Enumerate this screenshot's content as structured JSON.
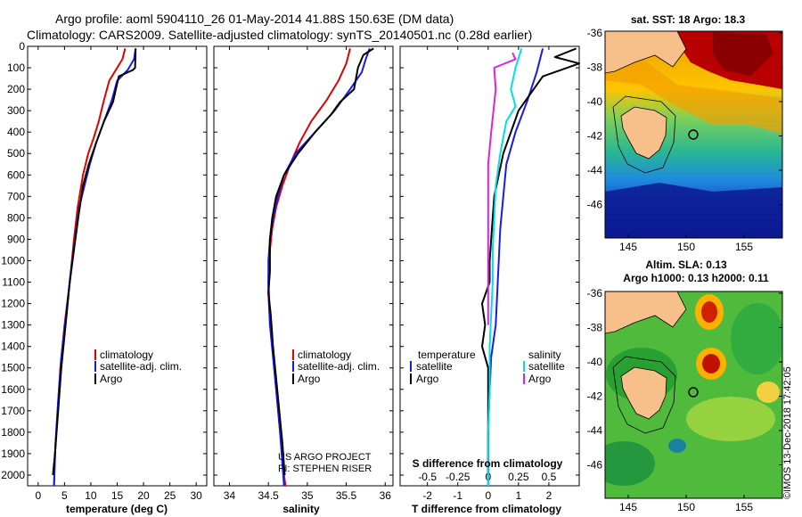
{
  "header": {
    "line1": "Argo profile: aoml 5904110_26 01-May-2014 41.88S 150.63E (DM data)",
    "line2": "Climatology: CARS2009. Satellite-adjusted climatology: synTS_20140501.nc (0.28d earlier)"
  },
  "credit": "©IMOS 13-Dec-2018 17:42:05",
  "colors": {
    "climatology": "#e00000",
    "satellite": "#1a1ae6",
    "argo": "#000000",
    "s_satellite": "#00e0e0",
    "s_argo": "#e020e0"
  },
  "chart_data": [
    {
      "id": "temperature",
      "type": "line",
      "xlabel": "temperature (deg C)",
      "ylabel": "",
      "xlim": [
        -2,
        32
      ],
      "ylim": [
        2050,
        0
      ],
      "xticks": [
        0,
        5,
        10,
        15,
        20,
        25,
        30
      ],
      "yticks": [
        0,
        100,
        200,
        300,
        400,
        500,
        600,
        700,
        800,
        900,
        1000,
        1100,
        1200,
        1300,
        1400,
        1500,
        1600,
        1700,
        1800,
        1900,
        2000
      ],
      "legend": [
        "climatology",
        "satellite-adj. clim.",
        "Argo"
      ],
      "series": [
        {
          "name": "climatology",
          "color": "#e00000",
          "points": [
            [
              16.5,
              10
            ],
            [
              16,
              60
            ],
            [
              15,
              100
            ],
            [
              13.5,
              160
            ],
            [
              12.5,
              250
            ],
            [
              11.5,
              350
            ],
            [
              10.5,
              430
            ],
            [
              9.5,
              500
            ],
            [
              8.5,
              600
            ],
            [
              7.5,
              750
            ],
            [
              6.8,
              900
            ],
            [
              6,
              1100
            ],
            [
              5,
              1300
            ],
            [
              4.2,
              1500
            ],
            [
              3.7,
              1700
            ],
            [
              3.2,
              1900
            ],
            [
              3,
              2050
            ]
          ]
        },
        {
          "name": "satellite-adj. clim.",
          "color": "#1a1ae6",
          "points": [
            [
              18.5,
              10
            ],
            [
              18.2,
              60
            ],
            [
              17,
              110
            ],
            [
              15,
              160
            ],
            [
              14,
              250
            ],
            [
              12.5,
              350
            ],
            [
              11,
              450
            ],
            [
              9.8,
              550
            ],
            [
              8.8,
              650
            ],
            [
              7.8,
              750
            ],
            [
              7,
              900
            ],
            [
              6.2,
              1050
            ],
            [
              5.3,
              1250
            ],
            [
              4.4,
              1450
            ],
            [
              3.8,
              1650
            ],
            [
              3.3,
              1850
            ],
            [
              3,
              2050
            ]
          ]
        },
        {
          "name": "Argo",
          "color": "#000000",
          "points": [
            [
              18.5,
              10
            ],
            [
              18.4,
              100
            ],
            [
              18,
              110
            ],
            [
              15.3,
              140
            ],
            [
              14.2,
              260
            ],
            [
              12.5,
              350
            ],
            [
              11,
              450
            ],
            [
              9.6,
              550
            ],
            [
              8.5,
              650
            ],
            [
              7.6,
              800
            ],
            [
              6.8,
              950
            ],
            [
              6,
              1100
            ],
            [
              5.2,
              1300
            ],
            [
              4.4,
              1500
            ],
            [
              3.8,
              1700
            ],
            [
              3.2,
              1900
            ],
            [
              2.8,
              2000
            ]
          ]
        }
      ]
    },
    {
      "id": "salinity",
      "type": "line",
      "xlabel": "salinity",
      "ylabel": "",
      "xlim": [
        33.8,
        36.1
      ],
      "ylim": [
        2050,
        0
      ],
      "xticks": [
        34,
        34.5,
        35,
        35.5,
        36
      ],
      "legend": [
        "climatology",
        "satellite-adj. clim.",
        "Argo"
      ],
      "annotation": [
        "US ARGO PROJECT",
        "PI: STEPHEN RISER"
      ],
      "series": [
        {
          "name": "climatology",
          "color": "#e00000",
          "points": [
            [
              35.55,
              10
            ],
            [
              35.5,
              80
            ],
            [
              35.4,
              160
            ],
            [
              35.25,
              250
            ],
            [
              35.05,
              350
            ],
            [
              34.9,
              450
            ],
            [
              34.78,
              550
            ],
            [
              34.68,
              650
            ],
            [
              34.6,
              750
            ],
            [
              34.55,
              850
            ],
            [
              34.52,
              950
            ],
            [
              34.5,
              1100
            ],
            [
              34.52,
              1250
            ],
            [
              34.55,
              1400
            ],
            [
              34.6,
              1600
            ],
            [
              34.65,
              1800
            ],
            [
              34.7,
              2000
            ],
            [
              34.72,
              2050
            ]
          ]
        },
        {
          "name": "satellite-adj. clim.",
          "color": "#1a1ae6",
          "points": [
            [
              35.8,
              10
            ],
            [
              35.75,
              60
            ],
            [
              35.7,
              120
            ],
            [
              35.55,
              200
            ],
            [
              35.35,
              300
            ],
            [
              35.1,
              400
            ],
            [
              34.85,
              500
            ],
            [
              34.7,
              600
            ],
            [
              34.62,
              700
            ],
            [
              34.56,
              800
            ],
            [
              34.52,
              900
            ],
            [
              34.5,
              1000
            ],
            [
              34.5,
              1150
            ],
            [
              34.52,
              1300
            ],
            [
              34.56,
              1450
            ],
            [
              34.6,
              1600
            ],
            [
              34.65,
              1800
            ],
            [
              34.7,
              2050
            ]
          ]
        },
        {
          "name": "Argo",
          "color": "#000000",
          "points": [
            [
              35.85,
              10
            ],
            [
              35.72,
              40
            ],
            [
              35.65,
              100
            ],
            [
              35.6,
              200
            ],
            [
              35.42,
              260
            ],
            [
              35.3,
              320
            ],
            [
              35.1,
              400
            ],
            [
              34.88,
              500
            ],
            [
              34.7,
              600
            ],
            [
              34.6,
              700
            ],
            [
              34.55,
              800
            ],
            [
              34.52,
              900
            ],
            [
              34.52,
              1050
            ],
            [
              34.5,
              1150
            ],
            [
              34.53,
              1250
            ],
            [
              34.56,
              1400
            ],
            [
              34.6,
              1550
            ],
            [
              34.64,
              1700
            ],
            [
              34.68,
              1850
            ],
            [
              34.71,
              2000
            ]
          ]
        }
      ]
    },
    {
      "id": "difference",
      "type": "line",
      "xlabel": "T difference from climatology",
      "xlabel_top": "S difference from climatology",
      "ylabel": "",
      "xlim": [
        -2.9,
        3.0
      ],
      "ylim": [
        2050,
        0
      ],
      "xticks": [
        -2,
        -1,
        0,
        1,
        2
      ],
      "sticks": [
        "-0.5",
        "-0.25",
        "0",
        "0.25",
        "0.5"
      ],
      "legend_temperature_title": "temperature",
      "legend_salinity_title": "salinity",
      "legend_temperature": [
        "satellite",
        "Argo"
      ],
      "legend_salinity": [
        "satellite",
        "Argo"
      ],
      "series": [
        {
          "name": "T satellite",
          "color": "#1a1ae6",
          "points": [
            [
              1.8,
              10
            ],
            [
              1.6,
              120
            ],
            [
              1.3,
              250
            ],
            [
              0.9,
              400
            ],
            [
              0.6,
              550
            ],
            [
              0.5,
              700
            ],
            [
              0.4,
              850
            ],
            [
              0.35,
              1000
            ],
            [
              0.3,
              1150
            ],
            [
              0.25,
              1300
            ],
            [
              0.1,
              1450
            ],
            [
              0.05,
              1600
            ],
            [
              0,
              1800
            ],
            [
              0,
              2050
            ]
          ]
        },
        {
          "name": "T Argo",
          "color": "#000000",
          "points": [
            [
              2.9,
              10
            ],
            [
              2.2,
              50
            ],
            [
              3.0,
              80
            ],
            [
              1.8,
              140
            ],
            [
              1.0,
              300
            ],
            [
              0.5,
              500
            ],
            [
              0.2,
              700
            ],
            [
              0.1,
              900
            ],
            [
              0.05,
              1000
            ],
            [
              0.05,
              1100
            ],
            [
              -0.2,
              1200
            ],
            [
              -0.1,
              1300
            ],
            [
              -0.2,
              1400
            ],
            [
              0,
              1500
            ],
            [
              0,
              1700
            ],
            [
              0,
              2000
            ]
          ]
        },
        {
          "name": "S satellite",
          "color": "#00e0e0",
          "points": [
            [
              1.1,
              10
            ],
            [
              0.9,
              100
            ],
            [
              0.75,
              200
            ],
            [
              0.9,
              280
            ],
            [
              0.6,
              350
            ],
            [
              0.4,
              500
            ],
            [
              0.25,
              650
            ],
            [
              0.2,
              800
            ],
            [
              0.15,
              950
            ],
            [
              0.15,
              1100
            ],
            [
              0.1,
              1250
            ],
            [
              0.05,
              1400
            ],
            [
              0.05,
              1600
            ],
            [
              0,
              1800
            ],
            [
              0,
              2050
            ]
          ]
        },
        {
          "name": "S Argo",
          "color": "#e020e0",
          "points": [
            [
              0.8,
              30
            ],
            [
              0.9,
              60
            ],
            [
              0.2,
              100
            ],
            [
              0.25,
              200
            ],
            [
              0.1,
              400
            ],
            [
              0,
              550
            ],
            [
              0,
              700
            ],
            [
              0,
              900
            ],
            [
              0,
              1100
            ],
            [
              0,
              1300
            ]
          ]
        }
      ]
    }
  ],
  "maps": {
    "sst": {
      "title": "sat. SST: 18 Argo: 18.3",
      "xticks": [
        "145",
        "150",
        "155"
      ],
      "yticks": [
        "-36",
        "-38",
        "-40",
        "-42",
        "-44",
        "-46"
      ]
    },
    "sla": {
      "title1": "Altim. SLA: 0.13",
      "title2": "Argo h1000: 0.13 h2000: 0.11",
      "xticks": [
        "145",
        "150",
        "155"
      ],
      "yticks": [
        "-36",
        "-38",
        "-40",
        "-42",
        "-44",
        "-46"
      ]
    }
  }
}
